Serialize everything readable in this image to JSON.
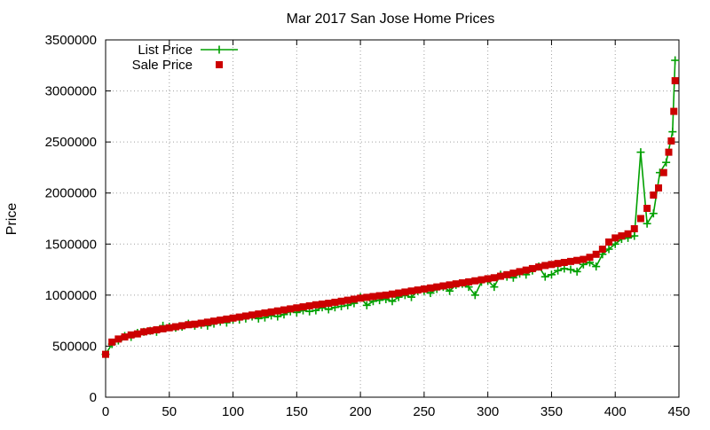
{
  "chart_data": {
    "type": "scatter",
    "title": "Mar 2017 San Jose Home Prices",
    "xlabel": "",
    "ylabel": "Price",
    "xlim": [
      0,
      450
    ],
    "ylim": [
      0,
      3500000
    ],
    "x_ticks": [
      0,
      50,
      100,
      150,
      200,
      250,
      300,
      350,
      400,
      450
    ],
    "y_ticks": [
      0,
      500000,
      1000000,
      1500000,
      2000000,
      2500000,
      3000000,
      3500000
    ],
    "grid": true,
    "legend_position": "top-left",
    "colors": {
      "list": "#00a000",
      "sale": "#cc0000",
      "grid": "#a0a0a0"
    },
    "series": [
      {
        "name": "List Price",
        "style": "line-with-plus-markers",
        "color": "#00a000",
        "x": [
          0,
          5,
          10,
          15,
          20,
          25,
          30,
          35,
          40,
          45,
          50,
          55,
          60,
          65,
          70,
          75,
          80,
          85,
          90,
          95,
          100,
          105,
          110,
          115,
          120,
          125,
          130,
          135,
          140,
          145,
          150,
          155,
          160,
          165,
          170,
          175,
          180,
          185,
          190,
          195,
          200,
          205,
          210,
          215,
          220,
          225,
          230,
          235,
          240,
          245,
          250,
          255,
          260,
          265,
          270,
          275,
          280,
          285,
          290,
          295,
          300,
          305,
          310,
          315,
          320,
          325,
          330,
          335,
          340,
          345,
          350,
          355,
          360,
          365,
          370,
          375,
          380,
          385,
          390,
          395,
          400,
          405,
          410,
          415,
          420,
          425,
          430,
          435,
          440,
          445,
          447
        ],
        "values": [
          420000,
          520000,
          555000,
          600000,
          590000,
          630000,
          640000,
          650000,
          640000,
          700000,
          690000,
          680000,
          690000,
          720000,
          700000,
          710000,
          700000,
          720000,
          740000,
          730000,
          760000,
          760000,
          770000,
          790000,
          770000,
          780000,
          800000,
          790000,
          810000,
          840000,
          830000,
          850000,
          840000,
          850000,
          880000,
          860000,
          880000,
          890000,
          900000,
          920000,
          980000,
          900000,
          940000,
          950000,
          960000,
          940000,
          980000,
          1000000,
          980000,
          1040000,
          1040000,
          1020000,
          1060000,
          1080000,
          1040000,
          1100000,
          1110000,
          1080000,
          1000000,
          1130000,
          1140000,
          1080000,
          1200000,
          1180000,
          1170000,
          1210000,
          1200000,
          1240000,
          1280000,
          1180000,
          1200000,
          1240000,
          1260000,
          1250000,
          1230000,
          1300000,
          1320000,
          1280000,
          1400000,
          1450000,
          1500000,
          1550000,
          1560000,
          1580000,
          2400000,
          1700000,
          1800000,
          2200000,
          2300000,
          2600000,
          3300000
        ]
      },
      {
        "name": "Sale Price",
        "style": "square-markers",
        "color": "#cc0000",
        "x": [
          0,
          5,
          10,
          15,
          20,
          25,
          30,
          35,
          40,
          45,
          50,
          55,
          60,
          65,
          70,
          75,
          80,
          85,
          90,
          95,
          100,
          105,
          110,
          115,
          120,
          125,
          130,
          135,
          140,
          145,
          150,
          155,
          160,
          165,
          170,
          175,
          180,
          185,
          190,
          195,
          200,
          205,
          210,
          215,
          220,
          225,
          230,
          235,
          240,
          245,
          250,
          255,
          260,
          265,
          270,
          275,
          280,
          285,
          290,
          295,
          300,
          305,
          310,
          315,
          320,
          325,
          330,
          335,
          340,
          345,
          350,
          355,
          360,
          365,
          370,
          375,
          380,
          385,
          390,
          395,
          400,
          405,
          410,
          415,
          420,
          425,
          430,
          434,
          438,
          442,
          444,
          446,
          447
        ],
        "values": [
          420000,
          540000,
          570000,
          590000,
          610000,
          620000,
          640000,
          650000,
          660000,
          670000,
          680000,
          690000,
          700000,
          710000,
          715000,
          725000,
          735000,
          745000,
          755000,
          765000,
          775000,
          785000,
          795000,
          805000,
          815000,
          825000,
          835000,
          845000,
          855000,
          865000,
          875000,
          885000,
          895000,
          905000,
          912000,
          920000,
          930000,
          940000,
          950000,
          960000,
          970000,
          978000,
          986000,
          994000,
          1000000,
          1010000,
          1020000,
          1030000,
          1040000,
          1050000,
          1060000,
          1070000,
          1080000,
          1090000,
          1100000,
          1110000,
          1120000,
          1130000,
          1140000,
          1150000,
          1160000,
          1170000,
          1185000,
          1200000,
          1215000,
          1230000,
          1245000,
          1260000,
          1275000,
          1290000,
          1300000,
          1310000,
          1320000,
          1330000,
          1340000,
          1350000,
          1370000,
          1400000,
          1450000,
          1520000,
          1560000,
          1580000,
          1600000,
          1650000,
          1750000,
          1850000,
          1980000,
          2050000,
          2200000,
          2400000,
          2510000,
          2800000,
          3100000
        ]
      }
    ]
  }
}
